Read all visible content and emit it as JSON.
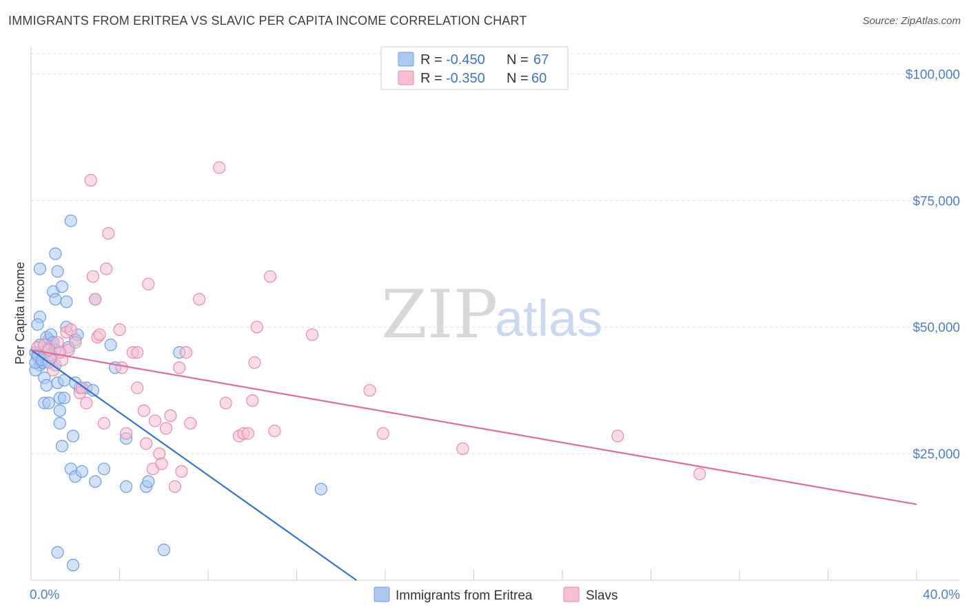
{
  "title": "IMMIGRANTS FROM ERITREA VS SLAVIC PER CAPITA INCOME CORRELATION CHART",
  "source": "Source: ZipAtlas.com",
  "watermark": {
    "zip": "ZIP",
    "atlas": "atlas"
  },
  "legend": {
    "rows": [
      {
        "r_label": "R = ",
        "r_value": "-0.450",
        "n_label": "N = ",
        "n_value": "67",
        "color": "#a9c8f2",
        "stroke": "#6d9fe0"
      },
      {
        "r_label": "R = ",
        "r_value": "-0.350",
        "n_label": "N = ",
        "n_value": "60",
        "color": "#f7bfd0",
        "stroke": "#e88aa8"
      }
    ]
  },
  "bottom_legend": [
    {
      "label": "Immigrants from Eritrea",
      "color": "#a9c8f2",
      "stroke": "#6d9fe0"
    },
    {
      "label": "Slavs",
      "color": "#f7bfd0",
      "stroke": "#e88aa8"
    }
  ],
  "chart_data": {
    "type": "scatter",
    "title": "IMMIGRANTS FROM ERITREA VS SLAVIC PER CAPITA INCOME CORRELATION CHART",
    "xlabel": "",
    "ylabel": "Per Capita Income",
    "xlim": [
      0,
      40
    ],
    "ylim": [
      0,
      100000
    ],
    "x_tick_labels": [
      {
        "value": 0,
        "label": "0.0%"
      },
      {
        "value": 40,
        "label": "40.0%"
      }
    ],
    "y_tick_labels": [
      {
        "value": 25000,
        "label": "$25,000"
      },
      {
        "value": 50000,
        "label": "$50,000"
      },
      {
        "value": 75000,
        "label": "$75,000"
      },
      {
        "value": 100000,
        "label": "$100,000"
      }
    ],
    "grid": true,
    "series": [
      {
        "name": "Immigrants from Eritrea",
        "color": "#6d9fe0",
        "fill": "#a9c8f2",
        "trend": {
          "x0": 0,
          "y0": 45500,
          "x1": 14.7,
          "y1": 0,
          "color": "#2f74d0"
        },
        "points": [
          [
            0.2,
            45000
          ],
          [
            0.3,
            44000
          ],
          [
            0.4,
            42500
          ],
          [
            0.2,
            41500
          ],
          [
            0.5,
            43000
          ],
          [
            0.6,
            40000
          ],
          [
            0.7,
            38500
          ],
          [
            0.8,
            47500
          ],
          [
            0.9,
            46500
          ],
          [
            1.0,
            47000
          ],
          [
            1.1,
            42500
          ],
          [
            1.2,
            39000
          ],
          [
            1.3,
            36000
          ],
          [
            0.6,
            35000
          ],
          [
            0.8,
            35000
          ],
          [
            1.3,
            33500
          ],
          [
            1.3,
            31000
          ],
          [
            1.4,
            26500
          ],
          [
            1.9,
            28500
          ],
          [
            1.5,
            36000
          ],
          [
            1.8,
            22000
          ],
          [
            2.0,
            20500
          ],
          [
            2.3,
            21500
          ],
          [
            2.9,
            19500
          ],
          [
            3.3,
            22000
          ],
          [
            4.3,
            18500
          ],
          [
            5.2,
            18500
          ],
          [
            5.3,
            19500
          ],
          [
            1.2,
            5500
          ],
          [
            1.9,
            3000
          ],
          [
            6.0,
            6000
          ],
          [
            13.1,
            18000
          ],
          [
            0.4,
            61500
          ],
          [
            1.0,
            57000
          ],
          [
            1.1,
            55500
          ],
          [
            1.2,
            61000
          ],
          [
            1.4,
            58000
          ],
          [
            1.6,
            55000
          ],
          [
            1.1,
            64500
          ],
          [
            1.8,
            71000
          ],
          [
            0.4,
            52000
          ],
          [
            0.3,
            50500
          ],
          [
            1.6,
            50000
          ],
          [
            0.7,
            48000
          ],
          [
            0.9,
            48500
          ],
          [
            1.0,
            47000
          ],
          [
            2.0,
            47500
          ],
          [
            2.1,
            48500
          ],
          [
            2.5,
            38000
          ],
          [
            2.8,
            37500
          ],
          [
            3.6,
            46500
          ],
          [
            3.8,
            42000
          ],
          [
            6.7,
            45000
          ],
          [
            0.2,
            43000
          ],
          [
            0.3,
            44500
          ],
          [
            0.5,
            43500
          ],
          [
            0.8,
            43000
          ],
          [
            1.7,
            46000
          ],
          [
            2.2,
            38000
          ],
          [
            2.9,
            55500
          ],
          [
            4.3,
            28000
          ],
          [
            1.1,
            45500
          ],
          [
            0.9,
            44500
          ],
          [
            0.4,
            46500
          ],
          [
            0.6,
            45000
          ],
          [
            1.5,
            39500
          ],
          [
            2.0,
            39000
          ]
        ]
      },
      {
        "name": "Slavs",
        "color": "#e88aa8",
        "fill": "#f7bfd0",
        "trend": {
          "x0": 0,
          "y0": 45500,
          "x1": 40,
          "y1": 15000,
          "color": "#e36a95"
        },
        "points": [
          [
            0.3,
            46000
          ],
          [
            0.6,
            46500
          ],
          [
            0.9,
            44000
          ],
          [
            1.2,
            47000
          ],
          [
            1.4,
            43500
          ],
          [
            1.6,
            49000
          ],
          [
            1.7,
            45500
          ],
          [
            1.8,
            49500
          ],
          [
            2.2,
            37000
          ],
          [
            2.3,
            38000
          ],
          [
            2.5,
            35000
          ],
          [
            2.8,
            60000
          ],
          [
            2.9,
            55500
          ],
          [
            3.0,
            48000
          ],
          [
            3.3,
            31000
          ],
          [
            3.4,
            61500
          ],
          [
            3.5,
            68500
          ],
          [
            4.0,
            49500
          ],
          [
            4.1,
            42000
          ],
          [
            4.3,
            29000
          ],
          [
            4.6,
            45000
          ],
          [
            4.8,
            45000
          ],
          [
            4.8,
            38000
          ],
          [
            5.1,
            33500
          ],
          [
            5.2,
            27000
          ],
          [
            5.3,
            58500
          ],
          [
            5.5,
            22000
          ],
          [
            5.6,
            31500
          ],
          [
            5.8,
            25000
          ],
          [
            5.9,
            23000
          ],
          [
            6.1,
            30000
          ],
          [
            6.3,
            32500
          ],
          [
            6.5,
            18500
          ],
          [
            6.7,
            42000
          ],
          [
            6.8,
            21500
          ],
          [
            7.0,
            45000
          ],
          [
            7.2,
            31000
          ],
          [
            7.6,
            55500
          ],
          [
            8.5,
            81500
          ],
          [
            8.8,
            35000
          ],
          [
            9.4,
            28500
          ],
          [
            9.6,
            29000
          ],
          [
            9.8,
            29000
          ],
          [
            10.0,
            35500
          ],
          [
            10.1,
            43000
          ],
          [
            10.2,
            50000
          ],
          [
            10.8,
            60000
          ],
          [
            11.0,
            29500
          ],
          [
            12.7,
            48500
          ],
          [
            15.3,
            37500
          ],
          [
            15.9,
            29000
          ],
          [
            19.5,
            26000
          ],
          [
            26.5,
            28500
          ],
          [
            30.2,
            21000
          ],
          [
            2.7,
            79000
          ],
          [
            3.1,
            48500
          ],
          [
            1.0,
            41500
          ],
          [
            2.0,
            47000
          ],
          [
            0.8,
            45500
          ],
          [
            1.3,
            45000
          ]
        ]
      }
    ]
  }
}
